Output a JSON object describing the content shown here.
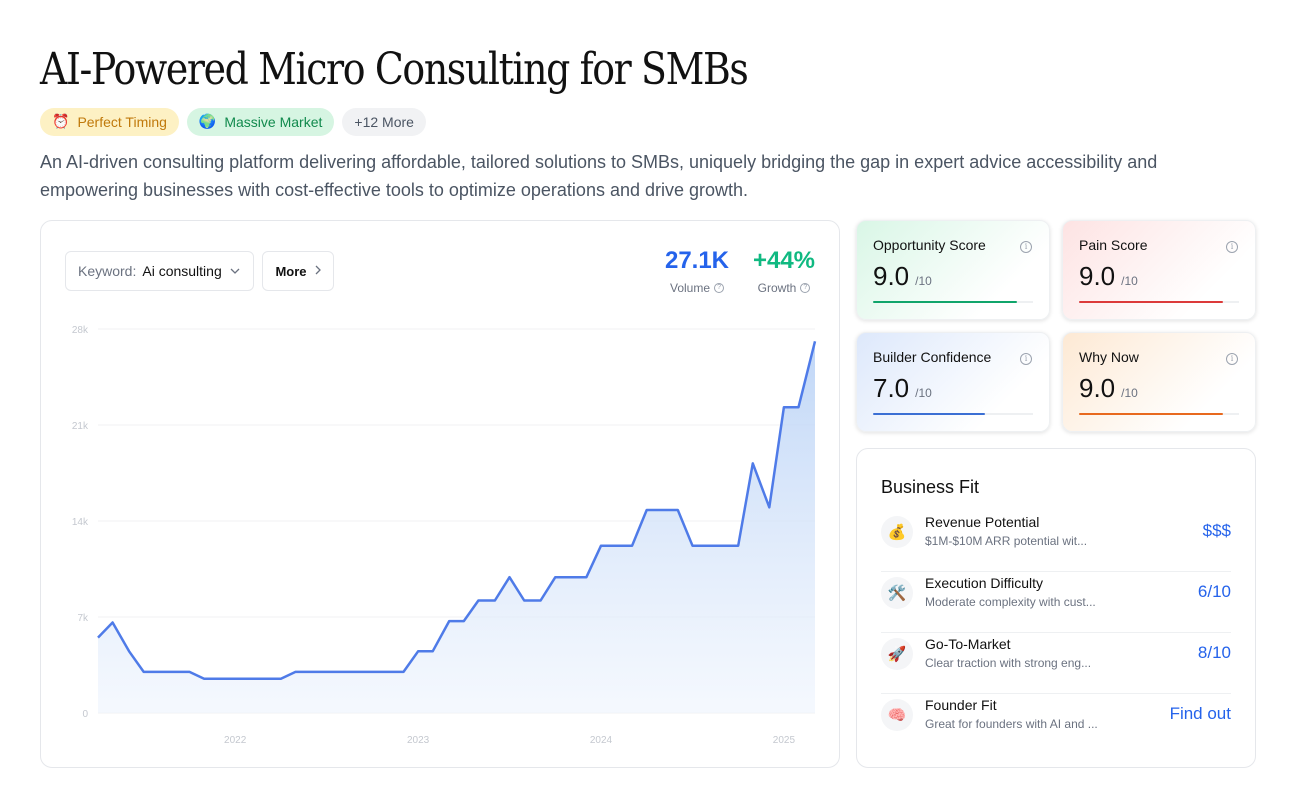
{
  "title": "AI-Powered Micro Consulting for SMBs",
  "tags": [
    {
      "icon": "alarm-clock-icon",
      "glyph": "⏰",
      "label": "Perfect Timing"
    },
    {
      "icon": "globe-icon",
      "glyph": "🌍",
      "label": "Massive Market"
    },
    {
      "label": "+12 More"
    }
  ],
  "description": "An AI-driven consulting platform delivering affordable, tailored solutions to SMBs, uniquely bridging the gap in expert advice accessibility and empowering businesses with cost-effective tools to optimize operations and drive growth.",
  "keyword": {
    "label": "Keyword:",
    "value": "Ai consulting"
  },
  "more_button": "More",
  "stats": {
    "volume": {
      "value": "27.1K",
      "label": "Volume"
    },
    "growth": {
      "value": "+44%",
      "label": "Growth"
    }
  },
  "chart_data": {
    "type": "area",
    "yticks": [
      {
        "v": 0,
        "label": "0"
      },
      {
        "v": 7000,
        "label": "7k"
      },
      {
        "v": 14000,
        "label": "14k"
      },
      {
        "v": 21000,
        "label": "21k"
      },
      {
        "v": 28000,
        "label": "28k"
      }
    ],
    "xticks": [
      {
        "t": 2022.0,
        "label": "2022"
      },
      {
        "t": 2023.0,
        "label": "2023"
      },
      {
        "t": 2024.0,
        "label": "2024"
      },
      {
        "t": 2025.0,
        "label": "2025"
      }
    ],
    "xlim": [
      2021.25,
      2025.17
    ],
    "ylim": [
      0,
      28000
    ],
    "grid": true,
    "line_color": "#4f7be8",
    "x": [
      2021.25,
      2021.33,
      2021.42,
      2021.5,
      2021.58,
      2021.67,
      2021.75,
      2021.83,
      2021.92,
      2022.0,
      2022.08,
      2022.17,
      2022.25,
      2022.33,
      2022.42,
      2022.5,
      2022.58,
      2022.67,
      2022.75,
      2022.83,
      2022.92,
      2023.0,
      2023.08,
      2023.17,
      2023.25,
      2023.33,
      2023.42,
      2023.5,
      2023.58,
      2023.67,
      2023.75,
      2023.83,
      2023.92,
      2024.0,
      2024.08,
      2024.17,
      2024.25,
      2024.33,
      2024.42,
      2024.5,
      2024.58,
      2024.67,
      2024.75,
      2024.83,
      2024.92,
      2025.0,
      2025.08,
      2025.17
    ],
    "y": [
      5500,
      6600,
      4500,
      3000,
      3000,
      3000,
      3000,
      2500,
      2500,
      2500,
      2500,
      2500,
      2500,
      3000,
      3000,
      3000,
      3000,
      3000,
      3000,
      3000,
      3000,
      4500,
      4500,
      6700,
      6700,
      8200,
      8200,
      9900,
      8200,
      8200,
      9900,
      9900,
      9900,
      12200,
      12200,
      12200,
      14800,
      14800,
      14800,
      12200,
      12200,
      12200,
      12200,
      18200,
      15000,
      22300,
      22300,
      27100
    ]
  },
  "scores": [
    {
      "title": "Opportunity Score",
      "value": "9.0",
      "max": "/10",
      "fraction": 0.9,
      "color": "#10a56b"
    },
    {
      "title": "Pain Score",
      "value": "9.0",
      "max": "/10",
      "fraction": 0.9,
      "color": "#dc3a3a"
    },
    {
      "title": "Builder Confidence",
      "value": "7.0",
      "max": "/10",
      "fraction": 0.7,
      "color": "#3b6fd4"
    },
    {
      "title": "Why Now",
      "value": "9.0",
      "max": "/10",
      "fraction": 0.9,
      "color": "#e8691e"
    }
  ],
  "business_fit": {
    "title": "Business Fit",
    "items": [
      {
        "icon": "money-bag-icon",
        "glyph": "💰",
        "name": "Revenue Potential",
        "sub": "$1M-$10M ARR potential wit...",
        "value": "$$$"
      },
      {
        "icon": "hammer-wrench-icon",
        "glyph": "🛠️",
        "name": "Execution Difficulty",
        "sub": "Moderate complexity with cust...",
        "value": "6/10"
      },
      {
        "icon": "rocket-icon",
        "glyph": "🚀",
        "name": "Go-To-Market",
        "sub": "Clear traction with strong eng...",
        "value": "8/10"
      },
      {
        "icon": "brain-icon",
        "glyph": "🧠",
        "name": "Founder Fit",
        "sub": "Great for founders with AI and ...",
        "value": "Find out"
      }
    ]
  }
}
